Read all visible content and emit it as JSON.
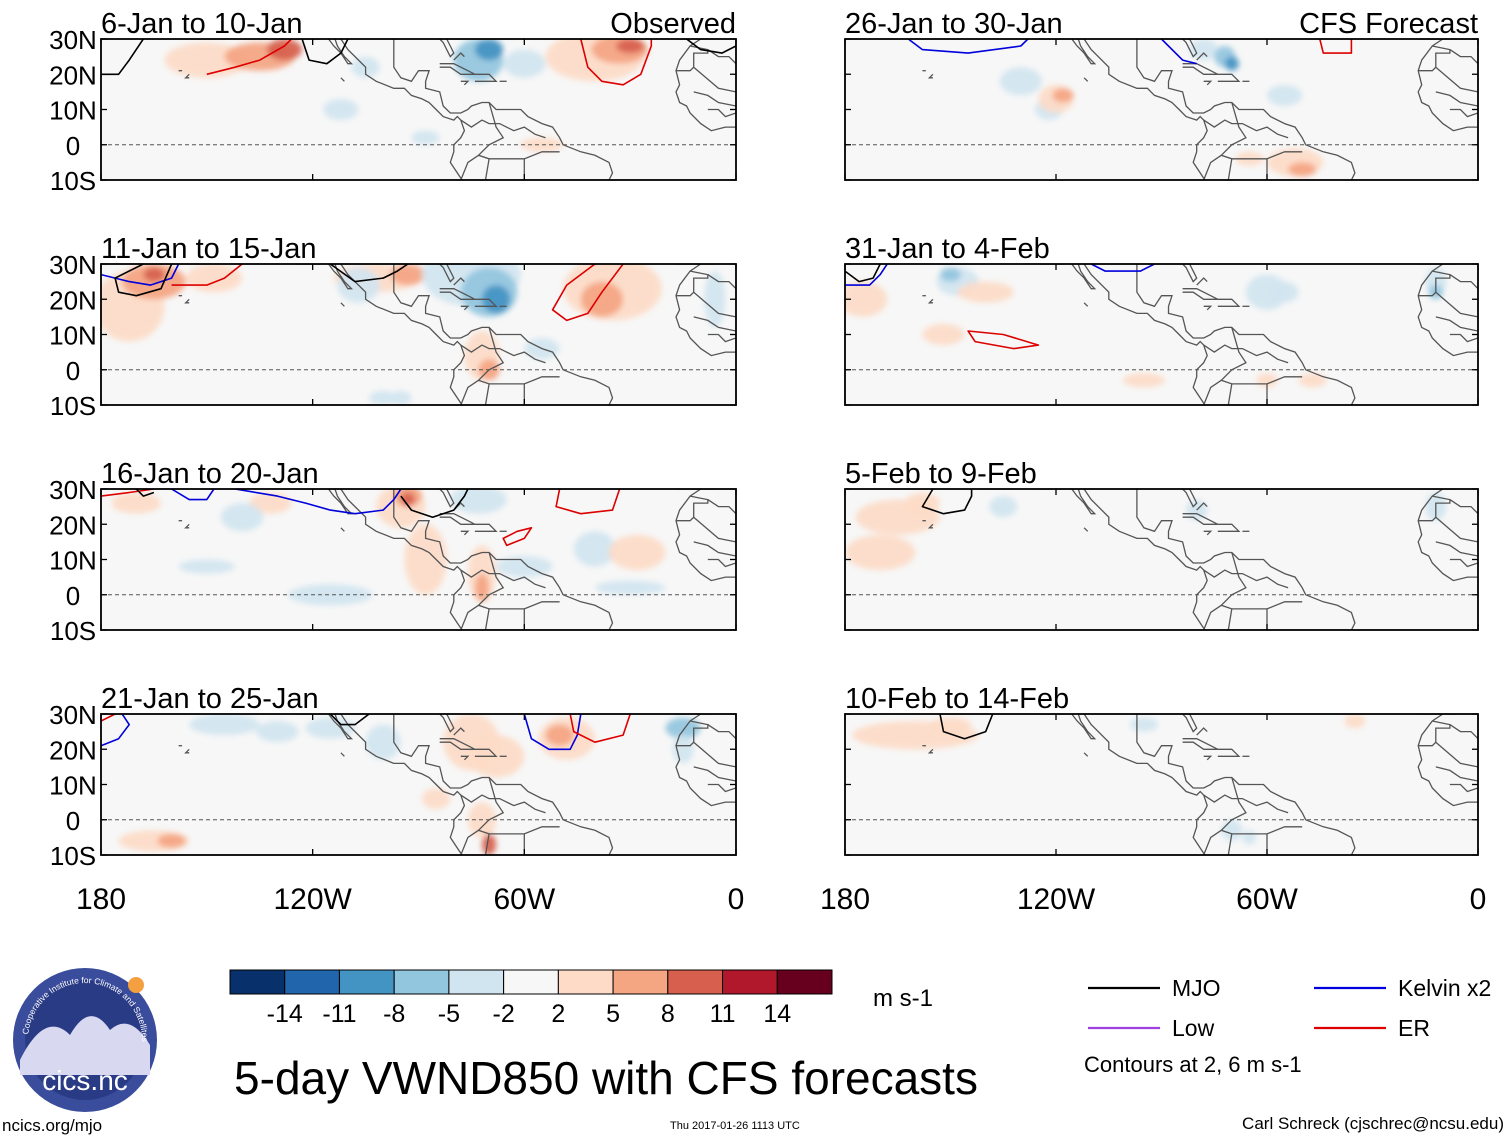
{
  "figure": {
    "title": "5-day VWND850 with CFS forecasts",
    "site": "ncics.org/mjo",
    "timestamp": "Thu 2017-01-26 1113 UTC",
    "author": "Carl Schreck (cjschrec@ncsu.edu)",
    "logo_text": "cics.nc",
    "logo_ring_text": "Cooperative Institute for Climate and Satellites"
  },
  "chart_data": {
    "type": "heatmap",
    "variable": "VWND850",
    "columns": [
      {
        "header": "Observed",
        "panels": [
          "6-Jan to 10-Jan",
          "11-Jan to 15-Jan",
          "16-Jan to 20-Jan",
          "21-Jan to 25-Jan"
        ]
      },
      {
        "header": "CFS Forecast",
        "panels": [
          "26-Jan to 30-Jan",
          "31-Jan to 4-Feb",
          "5-Feb to 9-Feb",
          "10-Feb to 14-Feb"
        ]
      }
    ],
    "lat_ticks": [
      "30N",
      "20N",
      "10N",
      "0",
      "10S"
    ],
    "lat_values": [
      30,
      20,
      10,
      0,
      -10
    ],
    "lon_ticks": [
      "180",
      "120W",
      "60W",
      "0"
    ],
    "lon_values": [
      -180,
      -120,
      -60,
      0
    ],
    "xlim": [
      -180,
      0
    ],
    "ylim": [
      -10,
      30
    ],
    "equator_dashed": true,
    "colorbar": {
      "units": "m s-1",
      "levels": [
        "-14",
        "-11",
        "-8",
        "-5",
        "-2",
        "2",
        "5",
        "8",
        "11",
        "14"
      ],
      "colors": [
        "#08306b",
        "#2166ac",
        "#4393c3",
        "#92c5de",
        "#d1e5f0",
        "#f7f7f7",
        "#fddbc7",
        "#f4a582",
        "#d6604d",
        "#b2182b",
        "#67001f"
      ]
    },
    "legend": [
      {
        "label": "MJO",
        "color": "#000000"
      },
      {
        "label": "Kelvin x2",
        "color": "#0000dd"
      },
      {
        "label": "Low",
        "color": "#a040e0"
      },
      {
        "label": "ER",
        "color": "#dd0000"
      }
    ],
    "contour_note": "Contours at 2, 6 m s-1"
  }
}
